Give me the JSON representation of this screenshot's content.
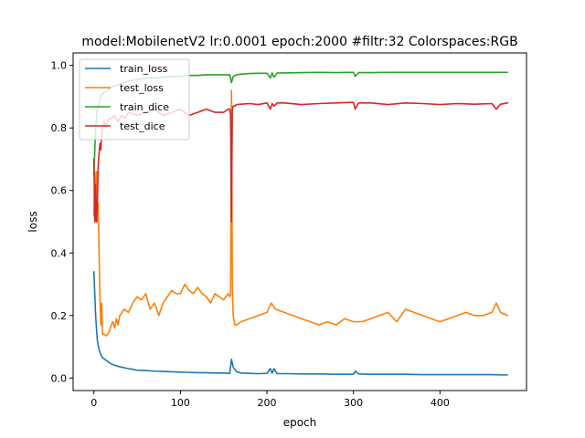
{
  "chart_data": {
    "type": "line",
    "title": "model:MobilenetV2 lr:0.0001 epoch:2000 #filtr:32 Colorspaces:RGB",
    "xlabel": "epoch",
    "ylabel": "loss",
    "xlim": [
      -24,
      500
    ],
    "ylim": [
      -0.04,
      1.04
    ],
    "xticks": [
      0,
      100,
      200,
      300,
      400
    ],
    "yticks": [
      0.0,
      0.2,
      0.4,
      0.6,
      0.8,
      1.0
    ],
    "legend_position": "upper-left",
    "grid": false,
    "series": [
      {
        "name": "train_loss",
        "color": "#1f77b4",
        "x": [
          0,
          2,
          4,
          6,
          8,
          10,
          15,
          20,
          25,
          30,
          35,
          40,
          45,
          50,
          60,
          70,
          80,
          90,
          100,
          110,
          120,
          130,
          140,
          150,
          157,
          159,
          161,
          165,
          170,
          180,
          190,
          200,
          204,
          206,
          208,
          212,
          220,
          240,
          260,
          280,
          300,
          302,
          306,
          320,
          340,
          360,
          380,
          400,
          420,
          440,
          460,
          470,
          478
        ],
        "y": [
          0.34,
          0.2,
          0.12,
          0.09,
          0.075,
          0.065,
          0.055,
          0.045,
          0.04,
          0.036,
          0.033,
          0.03,
          0.028,
          0.025,
          0.024,
          0.022,
          0.021,
          0.02,
          0.019,
          0.018,
          0.017,
          0.017,
          0.016,
          0.016,
          0.015,
          0.06,
          0.035,
          0.02,
          0.016,
          0.015,
          0.014,
          0.015,
          0.03,
          0.015,
          0.03,
          0.014,
          0.014,
          0.013,
          0.013,
          0.012,
          0.012,
          0.022,
          0.013,
          0.012,
          0.012,
          0.012,
          0.011,
          0.011,
          0.011,
          0.011,
          0.011,
          0.01,
          0.01
        ]
      },
      {
        "name": "test_loss",
        "color": "#ff7f0e",
        "x": [
          0,
          1,
          2,
          3,
          4,
          5,
          6,
          7,
          8,
          9,
          10,
          12,
          14,
          16,
          18,
          20,
          22,
          24,
          26,
          28,
          30,
          35,
          40,
          45,
          50,
          55,
          60,
          65,
          70,
          75,
          80,
          85,
          90,
          95,
          100,
          105,
          110,
          115,
          120,
          125,
          130,
          135,
          140,
          145,
          150,
          155,
          157,
          158,
          159,
          160,
          161,
          163,
          165,
          170,
          180,
          190,
          200,
          205,
          210,
          220,
          230,
          240,
          250,
          260,
          270,
          280,
          290,
          300,
          310,
          320,
          330,
          340,
          350,
          360,
          370,
          380,
          390,
          400,
          410,
          420,
          430,
          440,
          450,
          460,
          465,
          470,
          478
        ],
        "y": [
          0.52,
          0.66,
          0.5,
          0.66,
          0.5,
          0.56,
          0.4,
          0.25,
          0.17,
          0.24,
          0.14,
          0.14,
          0.135,
          0.14,
          0.15,
          0.17,
          0.18,
          0.16,
          0.19,
          0.17,
          0.2,
          0.22,
          0.21,
          0.24,
          0.26,
          0.25,
          0.27,
          0.22,
          0.24,
          0.2,
          0.24,
          0.26,
          0.28,
          0.27,
          0.27,
          0.3,
          0.28,
          0.27,
          0.29,
          0.27,
          0.26,
          0.24,
          0.27,
          0.26,
          0.25,
          0.27,
          0.26,
          0.27,
          0.92,
          0.3,
          0.2,
          0.17,
          0.17,
          0.18,
          0.19,
          0.2,
          0.21,
          0.24,
          0.22,
          0.21,
          0.2,
          0.19,
          0.18,
          0.17,
          0.18,
          0.17,
          0.19,
          0.18,
          0.18,
          0.19,
          0.2,
          0.21,
          0.18,
          0.22,
          0.21,
          0.2,
          0.19,
          0.18,
          0.19,
          0.2,
          0.21,
          0.2,
          0.2,
          0.21,
          0.24,
          0.21,
          0.2
        ]
      },
      {
        "name": "train_dice",
        "color": "#2ca02c",
        "x": [
          0,
          2,
          4,
          6,
          8,
          10,
          15,
          20,
          25,
          30,
          40,
          50,
          60,
          70,
          80,
          90,
          100,
          110,
          120,
          130,
          140,
          150,
          157,
          159,
          161,
          165,
          170,
          180,
          190,
          200,
          204,
          206,
          208,
          212,
          220,
          240,
          260,
          280,
          300,
          302,
          306,
          320,
          340,
          360,
          380,
          400,
          420,
          440,
          460,
          470,
          478
        ],
        "y": [
          0.65,
          0.8,
          0.86,
          0.88,
          0.9,
          0.91,
          0.92,
          0.93,
          0.935,
          0.94,
          0.95,
          0.955,
          0.96,
          0.96,
          0.962,
          0.965,
          0.965,
          0.968,
          0.968,
          0.97,
          0.97,
          0.97,
          0.97,
          0.945,
          0.965,
          0.97,
          0.972,
          0.974,
          0.975,
          0.975,
          0.96,
          0.976,
          0.962,
          0.976,
          0.976,
          0.977,
          0.978,
          0.977,
          0.978,
          0.965,
          0.977,
          0.977,
          0.978,
          0.978,
          0.978,
          0.978,
          0.978,
          0.978,
          0.978,
          0.978,
          0.978
        ]
      },
      {
        "name": "test_dice",
        "color": "#d62728",
        "x": [
          0,
          1,
          2,
          3,
          4,
          5,
          6,
          7,
          8,
          9,
          10,
          12,
          14,
          16,
          18,
          20,
          24,
          28,
          32,
          36,
          40,
          50,
          60,
          70,
          80,
          90,
          100,
          110,
          120,
          130,
          140,
          150,
          155,
          157,
          158,
          159,
          160,
          161,
          163,
          165,
          170,
          180,
          190,
          200,
          204,
          206,
          208,
          212,
          220,
          240,
          260,
          280,
          300,
          302,
          306,
          320,
          340,
          360,
          380,
          400,
          420,
          440,
          460,
          465,
          470,
          478
        ],
        "y": [
          0.7,
          0.5,
          0.62,
          0.5,
          0.55,
          0.68,
          0.72,
          0.75,
          0.73,
          0.78,
          0.8,
          0.82,
          0.8,
          0.82,
          0.83,
          0.83,
          0.84,
          0.82,
          0.84,
          0.83,
          0.85,
          0.84,
          0.85,
          0.86,
          0.84,
          0.85,
          0.86,
          0.84,
          0.85,
          0.86,
          0.85,
          0.85,
          0.86,
          0.86,
          0.84,
          0.5,
          0.86,
          0.87,
          0.87,
          0.875,
          0.876,
          0.878,
          0.875,
          0.88,
          0.86,
          0.878,
          0.87,
          0.88,
          0.88,
          0.875,
          0.878,
          0.88,
          0.882,
          0.86,
          0.88,
          0.88,
          0.875,
          0.88,
          0.878,
          0.875,
          0.878,
          0.876,
          0.878,
          0.86,
          0.876,
          0.88
        ]
      }
    ]
  }
}
